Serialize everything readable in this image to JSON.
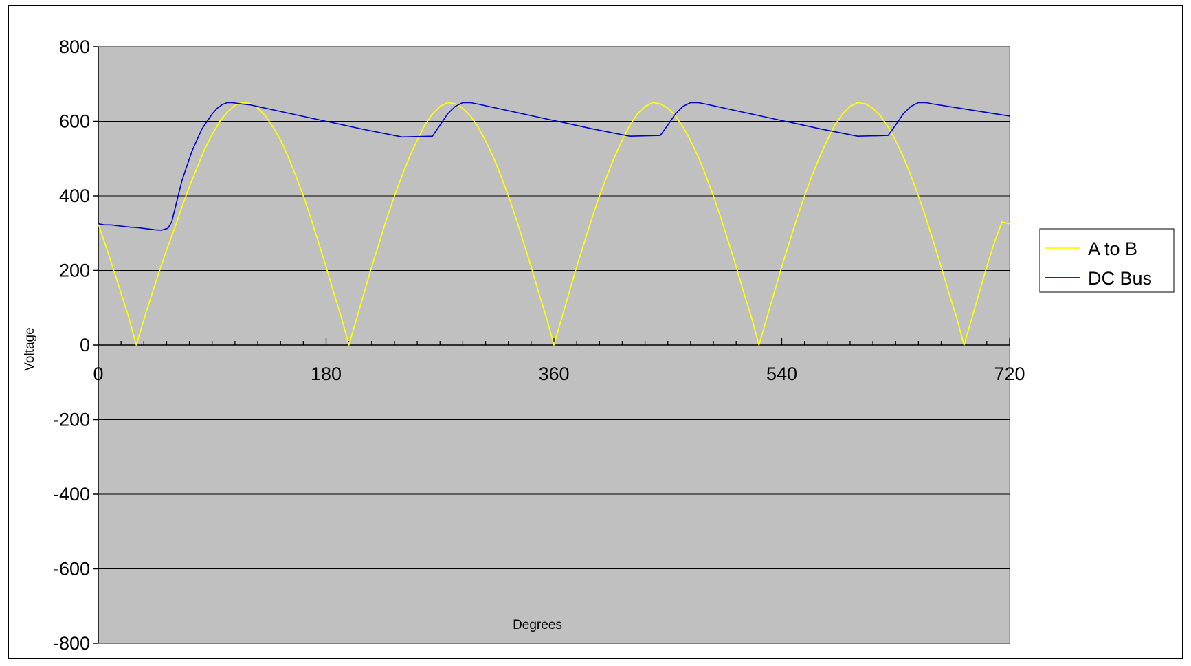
{
  "chart_data": {
    "type": "line",
    "title": "",
    "xlabel": "Degrees",
    "ylabel": "Voltage",
    "xlim": [
      0,
      720
    ],
    "ylim": [
      -800,
      800
    ],
    "x_ticks": [
      0,
      180,
      360,
      540,
      720
    ],
    "x_tick_labels": [
      "0",
      "180",
      "360",
      "540",
      "720"
    ],
    "y_ticks": [
      -800,
      -600,
      -400,
      -200,
      0,
      200,
      400,
      600,
      800
    ],
    "y_tick_labels": [
      "-800",
      "-600",
      "-400",
      "-200",
      "0",
      "200",
      "400",
      "600",
      "800"
    ],
    "x_minor_step": 18,
    "grid": "horizontal major",
    "plot_background": "#c0c0c0",
    "legend_position": "right",
    "series": [
      {
        "name": "A to B",
        "color": "#ffff00",
        "x": [
          0,
          8,
          16,
          24,
          30,
          38,
          46,
          54,
          60,
          66,
          72,
          78,
          84,
          90,
          96,
          102,
          108,
          114,
          120,
          126,
          132,
          138,
          144,
          150,
          156,
          162,
          168,
          174,
          180,
          186,
          192,
          198,
          204,
          210,
          216,
          222,
          228,
          234,
          240,
          246,
          252,
          258,
          264,
          270,
          276,
          282,
          288,
          294,
          300,
          306,
          312,
          318,
          324,
          330,
          336,
          342,
          348,
          354,
          360,
          366,
          372,
          378,
          384,
          390,
          396,
          402,
          408,
          414,
          420,
          426,
          432,
          438,
          444,
          450,
          456,
          462,
          468,
          474,
          480,
          486,
          492,
          498,
          504,
          510,
          516,
          522,
          528,
          534,
          540,
          546,
          552,
          558,
          564,
          570,
          576,
          582,
          588,
          594,
          600,
          606,
          612,
          618,
          624,
          630,
          636,
          642,
          648,
          654,
          660,
          666,
          672,
          678,
          684,
          690,
          696,
          702,
          708,
          714,
          720
        ],
        "y": [
          325,
          245,
          160,
          75,
          0,
          90,
          175,
          255,
          310,
          370,
          425,
          475,
          525,
          565,
          600,
          625,
          643,
          650,
          648,
          636,
          615,
          585,
          550,
          505,
          455,
          400,
          340,
          275,
          210,
          140,
          75,
          0,
          70,
          140,
          210,
          275,
          340,
          400,
          455,
          505,
          550,
          590,
          620,
          640,
          650,
          647,
          635,
          615,
          585,
          548,
          505,
          455,
          400,
          340,
          275,
          210,
          140,
          75,
          0,
          70,
          140,
          210,
          275,
          340,
          400,
          455,
          505,
          550,
          590,
          620,
          640,
          650,
          647,
          635,
          615,
          585,
          548,
          505,
          455,
          400,
          340,
          275,
          210,
          140,
          75,
          0,
          70,
          140,
          210,
          275,
          340,
          400,
          455,
          505,
          550,
          590,
          620,
          640,
          650,
          647,
          635,
          615,
          585,
          548,
          505,
          455,
          400,
          340,
          275,
          210,
          140,
          75,
          0,
          70,
          140,
          210,
          275,
          330,
          325
        ]
      },
      {
        "name": "DC Bus",
        "color": "#0000cc",
        "x": [
          0,
          5,
          10,
          15,
          20,
          25,
          30,
          35,
          40,
          45,
          50,
          55,
          58,
          62,
          66,
          70,
          74,
          78,
          82,
          86,
          90,
          94,
          98,
          102,
          106,
          110,
          114,
          117,
          120,
          150,
          180,
          210,
          240,
          264,
          270,
          276,
          282,
          288,
          294,
          297,
          300,
          330,
          360,
          390,
          420,
          444,
          450,
          456,
          462,
          468,
          474,
          477,
          480,
          510,
          540,
          570,
          600,
          624,
          630,
          636,
          642,
          648,
          654,
          657,
          660,
          690,
          720
        ],
        "y": [
          325,
          322,
          322,
          320,
          318,
          316,
          315,
          313,
          311,
          309,
          308,
          313,
          330,
          385,
          440,
          480,
          520,
          550,
          580,
          600,
          620,
          635,
          645,
          650,
          650,
          648,
          646,
          645,
          644,
          622,
          600,
          578,
          558,
          560,
          590,
          620,
          640,
          650,
          650,
          648,
          646,
          624,
          602,
          580,
          560,
          562,
          590,
          620,
          640,
          650,
          650,
          648,
          646,
          624,
          602,
          580,
          560,
          562,
          590,
          620,
          640,
          650,
          650,
          648,
          646,
          630,
          614
        ]
      }
    ]
  }
}
